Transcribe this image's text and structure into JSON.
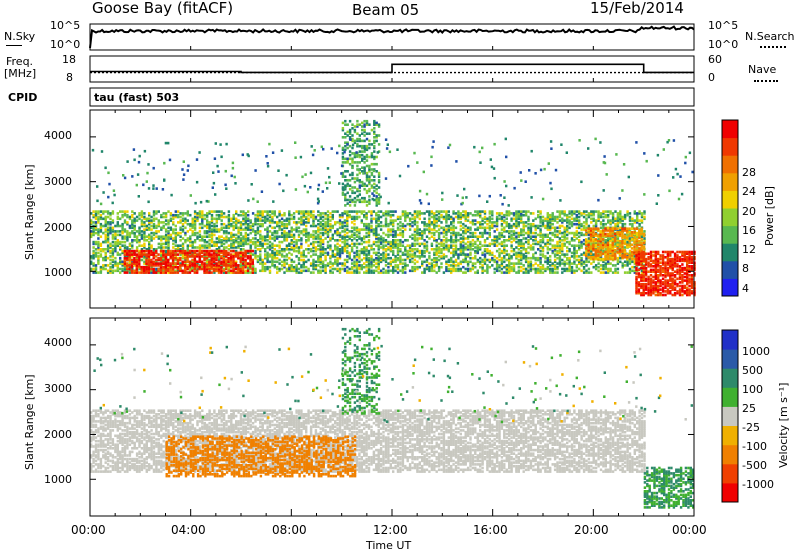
{
  "header": {
    "station": "Goose Bay (fitACF)",
    "beam": "Beam 05",
    "date": "15/Feb/2014"
  },
  "noise_panel": {
    "left_label": "N.Sky",
    "left_ticks": [
      "10^5",
      "10^0"
    ],
    "right_label": "N.Search",
    "right_ticks": [
      "10^5",
      "10^0"
    ]
  },
  "freq_panel": {
    "left_label_line1": "Freq.",
    "left_label_line2": "[MHz]",
    "left_ticks": [
      "18",
      "8"
    ],
    "right_label": "Nave",
    "right_ticks": [
      "60",
      "0"
    ]
  },
  "cpid": {
    "label": "CPID",
    "value": "tau (fast) 503"
  },
  "power_panel": {
    "ylabel": "Slant Range [km]",
    "yticks": [
      "4000",
      "3000",
      "2000",
      "1000"
    ],
    "colorbar_label": "Power [dB]",
    "colorbar_ticks": [
      "28",
      "24",
      "20",
      "16",
      "12",
      "8",
      "4"
    ],
    "colors": [
      "#2020f0",
      "#2050a8",
      "#20866a",
      "#58b850",
      "#90d030",
      "#f0d000",
      "#f0a000",
      "#f07000",
      "#f03800",
      "#f00000"
    ]
  },
  "velocity_panel": {
    "ylabel": "Slant Range [km]",
    "yticks": [
      "4000",
      "3000",
      "2000",
      "1000"
    ],
    "colorbar_label": "Velocity [m s⁻¹]",
    "colorbar_ticks": [
      "1000",
      "500",
      "100",
      "25",
      "-25",
      "-100",
      "-500",
      "-1000"
    ],
    "colors": [
      "#2030c8",
      "#2a5aa8",
      "#2e8a6a",
      "#40b030",
      "#c8c8c0",
      "#f0b000",
      "#f08000",
      "#f04000",
      "#f00000"
    ]
  },
  "x_axis": {
    "ticks": [
      "00:00",
      "04:00",
      "08:00",
      "12:00",
      "16:00",
      "20:00",
      "00:00"
    ],
    "label": "Time UT"
  },
  "chart_data": {
    "type": "heatmap",
    "title": "Goose Bay (fitACF)  Beam 05  15/Feb/2014",
    "xlabel": "Time UT",
    "ylabel": "Slant Range [km]",
    "xlim": [
      "00:00",
      "24:00"
    ],
    "ylim": [
      180,
      4600
    ],
    "frequency_mhz": [
      {
        "start": "00:00",
        "end": "06:00",
        "value": 10.5
      },
      {
        "start": "06:00",
        "end": "12:00",
        "value": 10.0
      },
      {
        "start": "12:00",
        "end": "22:00",
        "value": 14.5
      },
      {
        "start": "22:00",
        "end": "24:00",
        "value": 10.0
      }
    ],
    "nave": [
      {
        "start": "00:00",
        "end": "24:00",
        "value": 18
      }
    ],
    "power_db": {
      "colorbar_range": [
        0,
        32
      ],
      "regions": [
        {
          "name": "main band",
          "t_start": "00:00",
          "t_end": "22:00",
          "range_km": [
            1000,
            2400
          ],
          "typical_db": 12
        },
        {
          "name": "strong arc",
          "t_start": "01:20",
          "t_end": "06:30",
          "range_km": [
            1000,
            1500
          ],
          "typical_db": 28
        },
        {
          "name": "strong echoes",
          "t_start": "19:40",
          "t_end": "22:00",
          "range_km": [
            1300,
            2000
          ],
          "typical_db": 22
        },
        {
          "name": "descending trail",
          "t_start": "21:40",
          "t_end": "24:00",
          "range_km": [
            500,
            1500
          ],
          "typical_db": 28
        },
        {
          "name": "high range streak",
          "t_start": "10:00",
          "t_end": "11:30",
          "range_km": [
            2500,
            4400
          ],
          "typical_db": 10
        }
      ]
    },
    "velocity_ms": {
      "colorbar_range": [
        -1000,
        1000
      ],
      "regions": [
        {
          "name": "ground scatter band",
          "t_start": "00:00",
          "t_end": "22:00",
          "range_km": [
            1200,
            2600
          ],
          "typical_ms": 0
        },
        {
          "name": "negative velocity arc",
          "t_start": "03:00",
          "t_end": "10:30",
          "range_km": [
            1100,
            2000
          ],
          "typical_ms": -200
        },
        {
          "name": "positive velocity trail",
          "t_start": "22:00",
          "t_end": "24:00",
          "range_km": [
            400,
            1300
          ],
          "typical_ms": 100
        },
        {
          "name": "high range streak",
          "t_start": "10:00",
          "t_end": "11:30",
          "range_km": [
            2500,
            4400
          ],
          "typical_ms": 100
        }
      ]
    }
  }
}
